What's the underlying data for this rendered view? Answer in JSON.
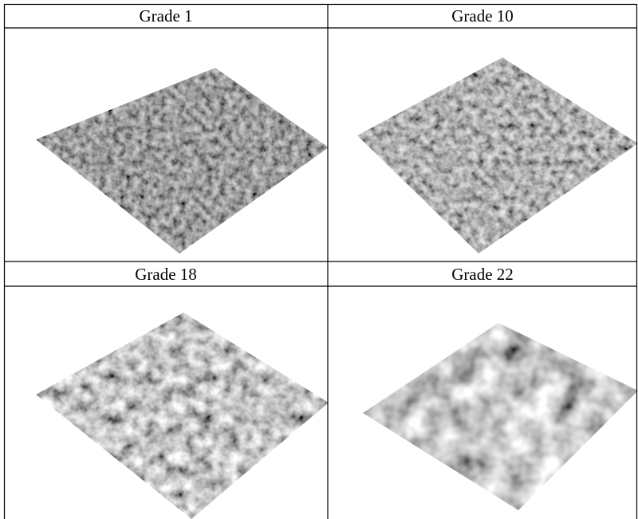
{
  "cells": [
    {
      "label": "Grade 1"
    },
    {
      "label": "Grade 10"
    },
    {
      "label": "Grade 18"
    },
    {
      "label": "Grade 22"
    }
  ]
}
